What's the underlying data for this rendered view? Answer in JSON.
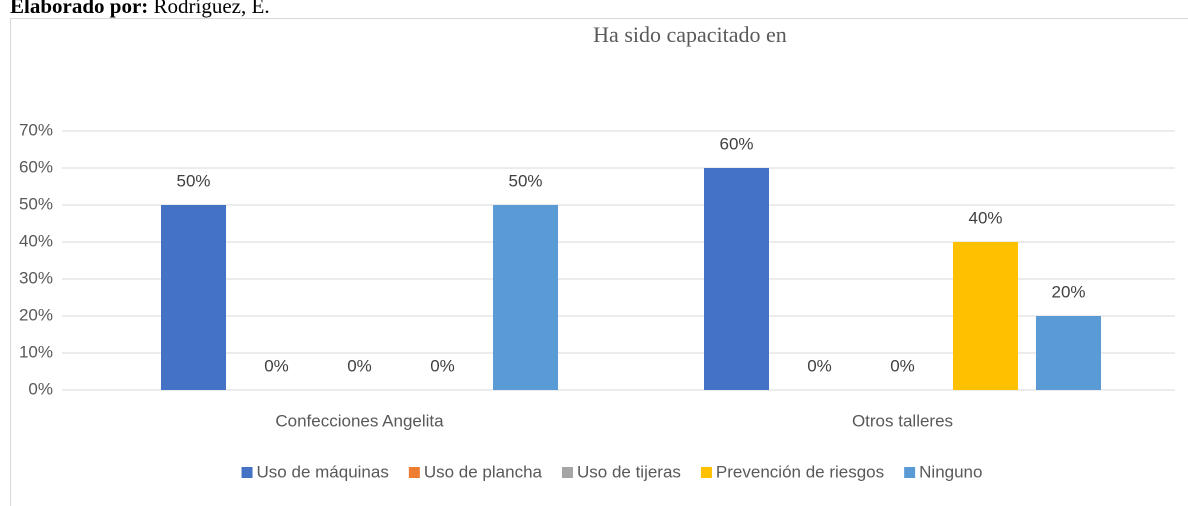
{
  "note_label": "Elaborado por:",
  "note": "Rodríguez, E.",
  "chart_data": {
    "type": "bar",
    "title": "Ha sido capacitado en",
    "categories": [
      "Confecciones Angelita",
      "Otros talleres"
    ],
    "series": [
      {
        "name": "Uso de máquinas",
        "color": "#4472c4",
        "values": [
          50,
          60
        ],
        "value_labels": [
          "50%",
          "60%"
        ]
      },
      {
        "name": "Uso de plancha",
        "color": "#ed7d31",
        "values": [
          0,
          0
        ],
        "value_labels": [
          "0%",
          "0%"
        ]
      },
      {
        "name": "Uso de tijeras",
        "color": "#a5a5a5",
        "values": [
          0,
          0
        ],
        "value_labels": [
          "0%",
          "0%"
        ]
      },
      {
        "name": "Prevención de riesgos",
        "color": "#ffc000",
        "values": [
          0,
          40
        ],
        "value_labels": [
          "0%",
          "40%"
        ]
      },
      {
        "name": "Ninguno",
        "color": "#5b9bd5",
        "values": [
          50,
          20
        ],
        "value_labels": [
          "50%",
          "20%"
        ]
      }
    ],
    "ylim": [
      0,
      70
    ],
    "yticks": [
      {
        "value": 0,
        "label": "0%"
      },
      {
        "value": 10,
        "label": "10%"
      },
      {
        "value": 20,
        "label": "20%"
      },
      {
        "value": 30,
        "label": "30%"
      },
      {
        "value": 40,
        "label": "40%"
      },
      {
        "value": 50,
        "label": "50%"
      },
      {
        "value": 60,
        "label": "60%"
      },
      {
        "value": 70,
        "label": "70%"
      }
    ],
    "grid": true,
    "legend": "bottom"
  }
}
